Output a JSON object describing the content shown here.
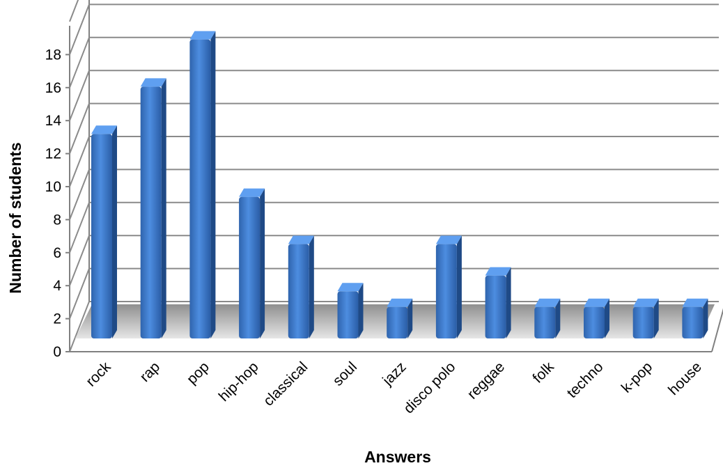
{
  "chart_data": {
    "type": "bar",
    "title": "",
    "xlabel": "Answers",
    "ylabel": "Number of students",
    "categories": [
      "rock",
      "rap",
      "pop",
      "hip-hop",
      "classical",
      "soul",
      "jazz",
      "disco polo",
      "reggae",
      "folk",
      "techno",
      "k-pop",
      "house"
    ],
    "values": [
      13,
      16,
      19,
      9,
      6,
      3,
      2,
      6,
      4,
      2,
      2,
      2,
      2
    ],
    "ylim": [
      0,
      20
    ],
    "yticks": [
      "0",
      "2",
      "4",
      "6",
      "8",
      "10",
      "12",
      "14",
      "16",
      "18"
    ],
    "grid": true,
    "legend": "none",
    "bar_color": "#3a78c9"
  }
}
